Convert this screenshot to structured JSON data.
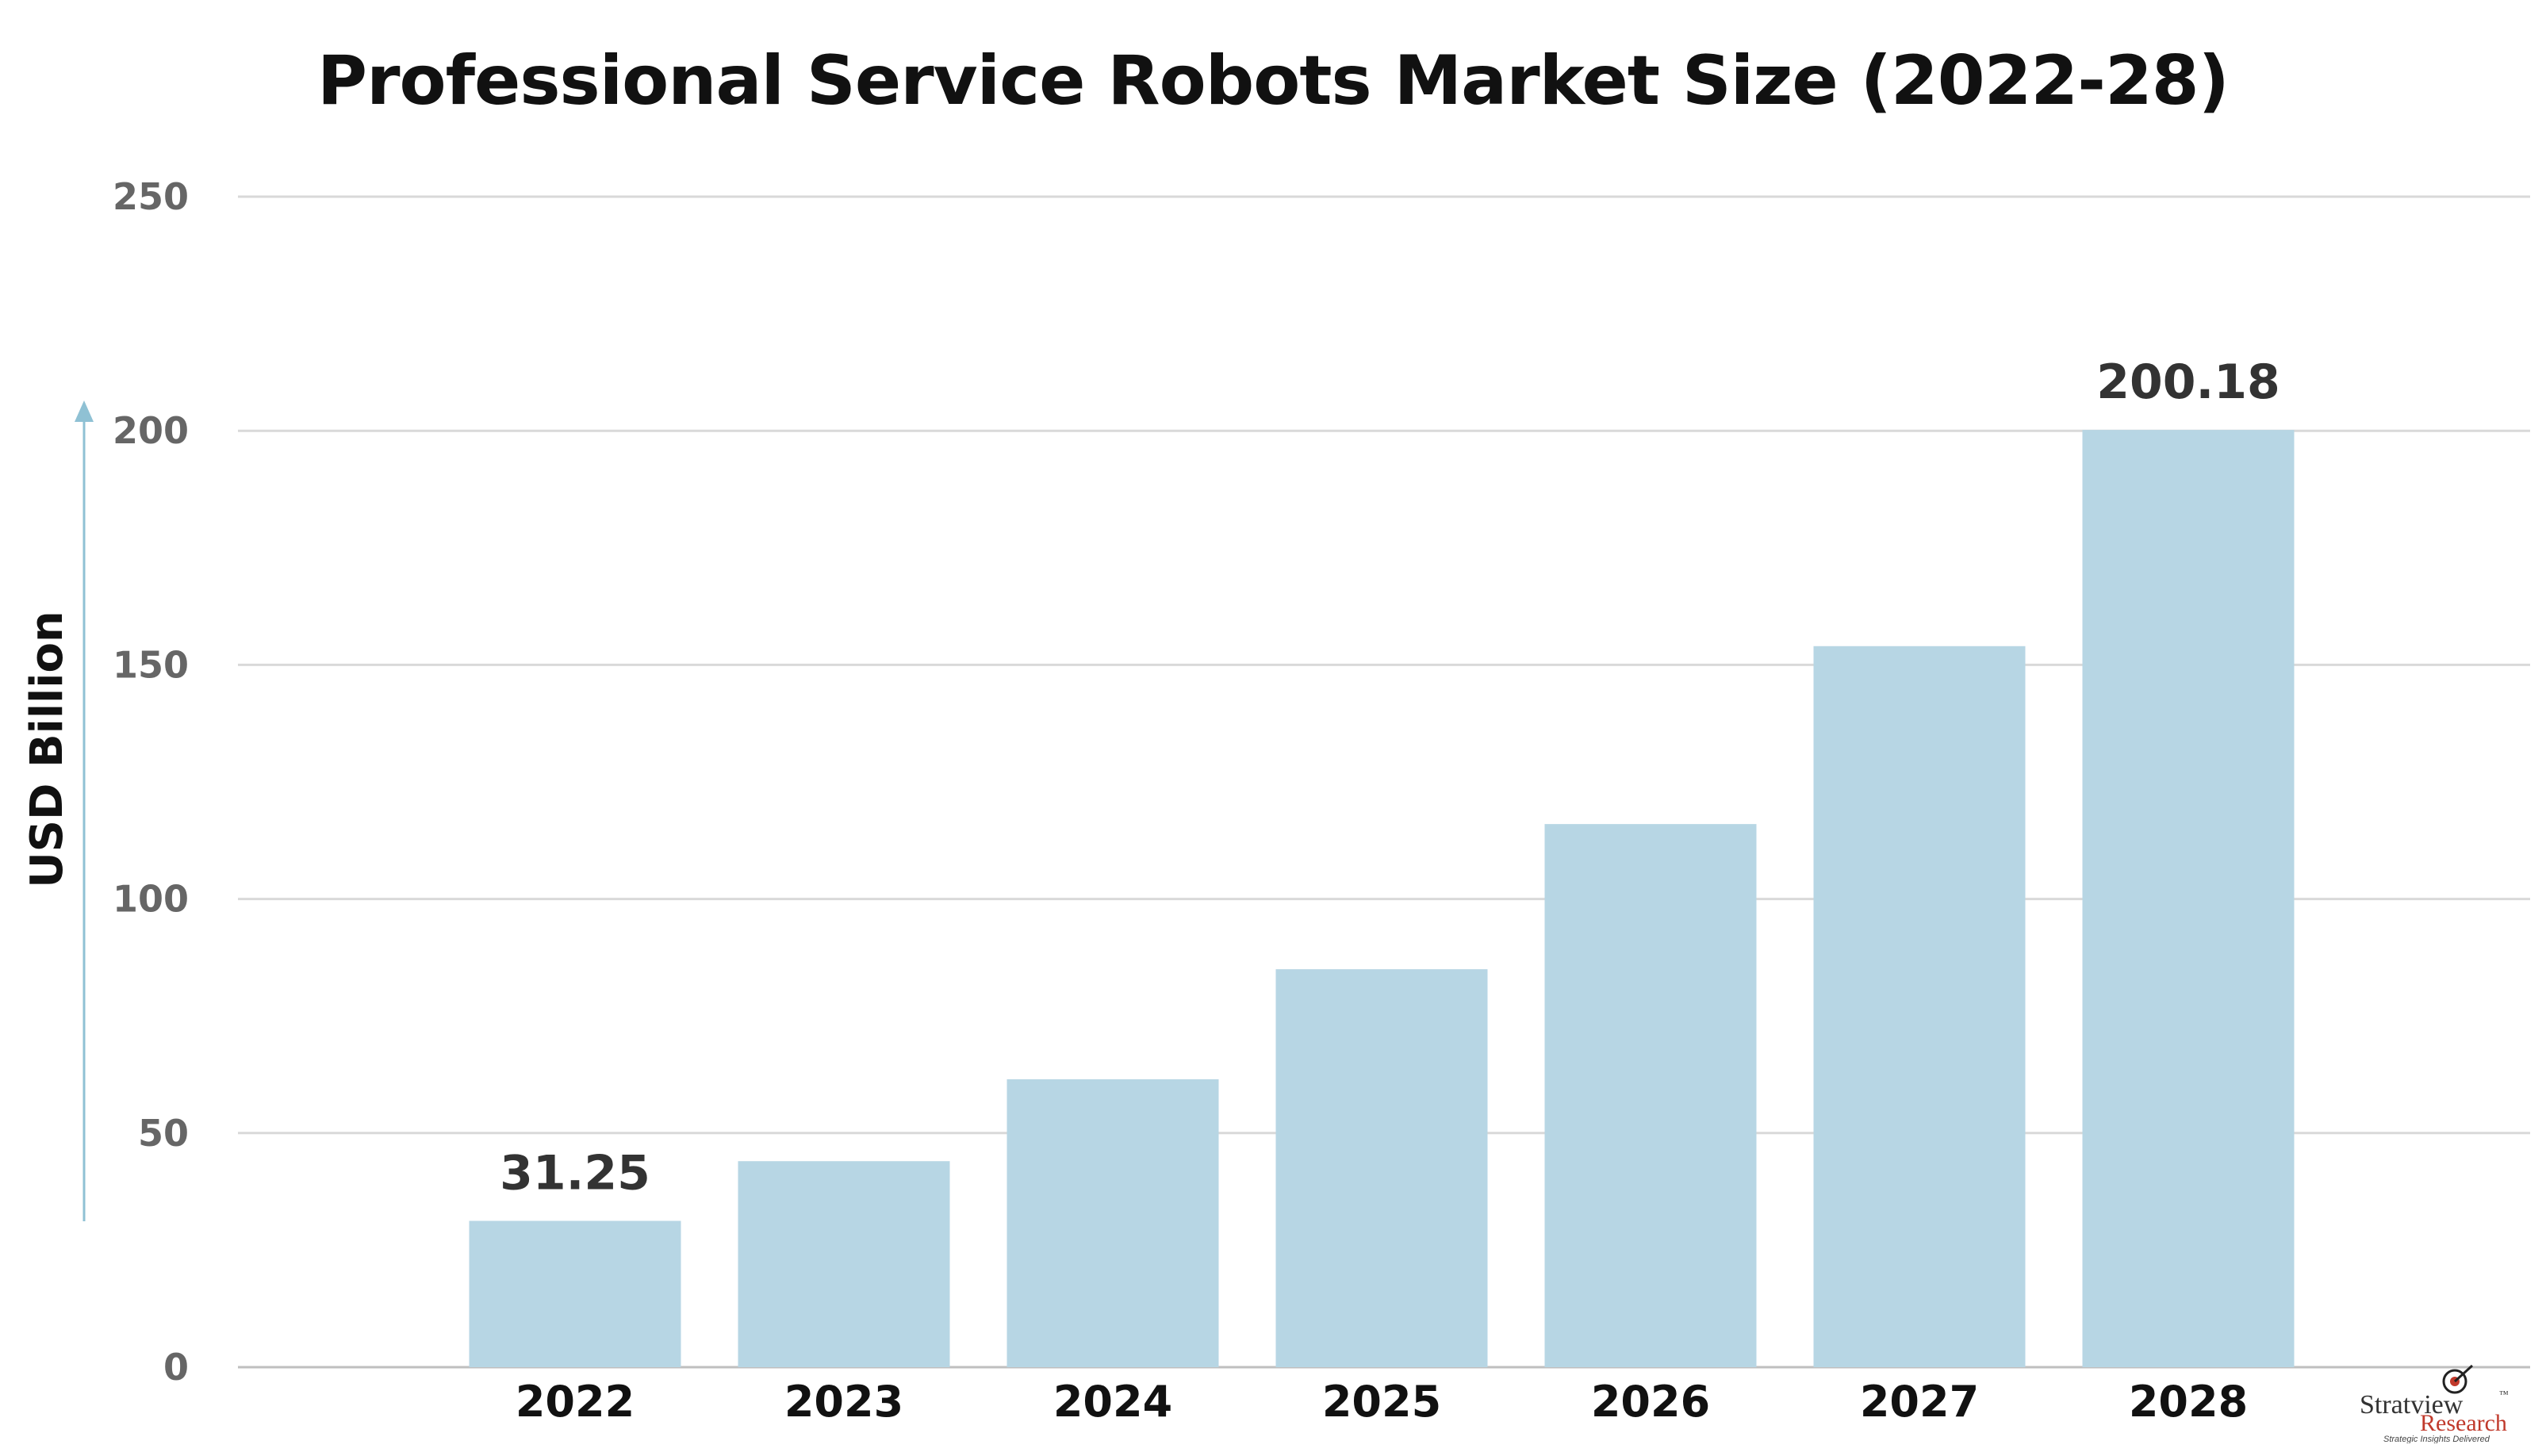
{
  "chart_data": {
    "type": "bar",
    "title": "Professional Service Robots Market Size (2022-28)",
    "xlabel": "",
    "ylabel": "USD Billion",
    "categories": [
      "2022",
      "2023",
      "2024",
      "2025",
      "2026",
      "2027",
      "2028"
    ],
    "values": [
      31.25,
      44,
      61.5,
      85,
      116,
      154,
      200.18
    ],
    "data_labels": [
      "31.25",
      "",
      "",
      "",
      "",
      "",
      "200.18"
    ],
    "ylim": [
      0,
      250
    ],
    "yticks": [
      0,
      50,
      100,
      150,
      200,
      250
    ],
    "grid": true,
    "bar_color": "#b7d6e4",
    "grid_color": "#d9d9d9",
    "arrow_color": "#8fc1d4"
  },
  "logo": {
    "name_part1": "Strat",
    "name_part2": "iew",
    "trademark": "™",
    "sub": "Research",
    "tagline": "Strategic Insights Delivered"
  }
}
